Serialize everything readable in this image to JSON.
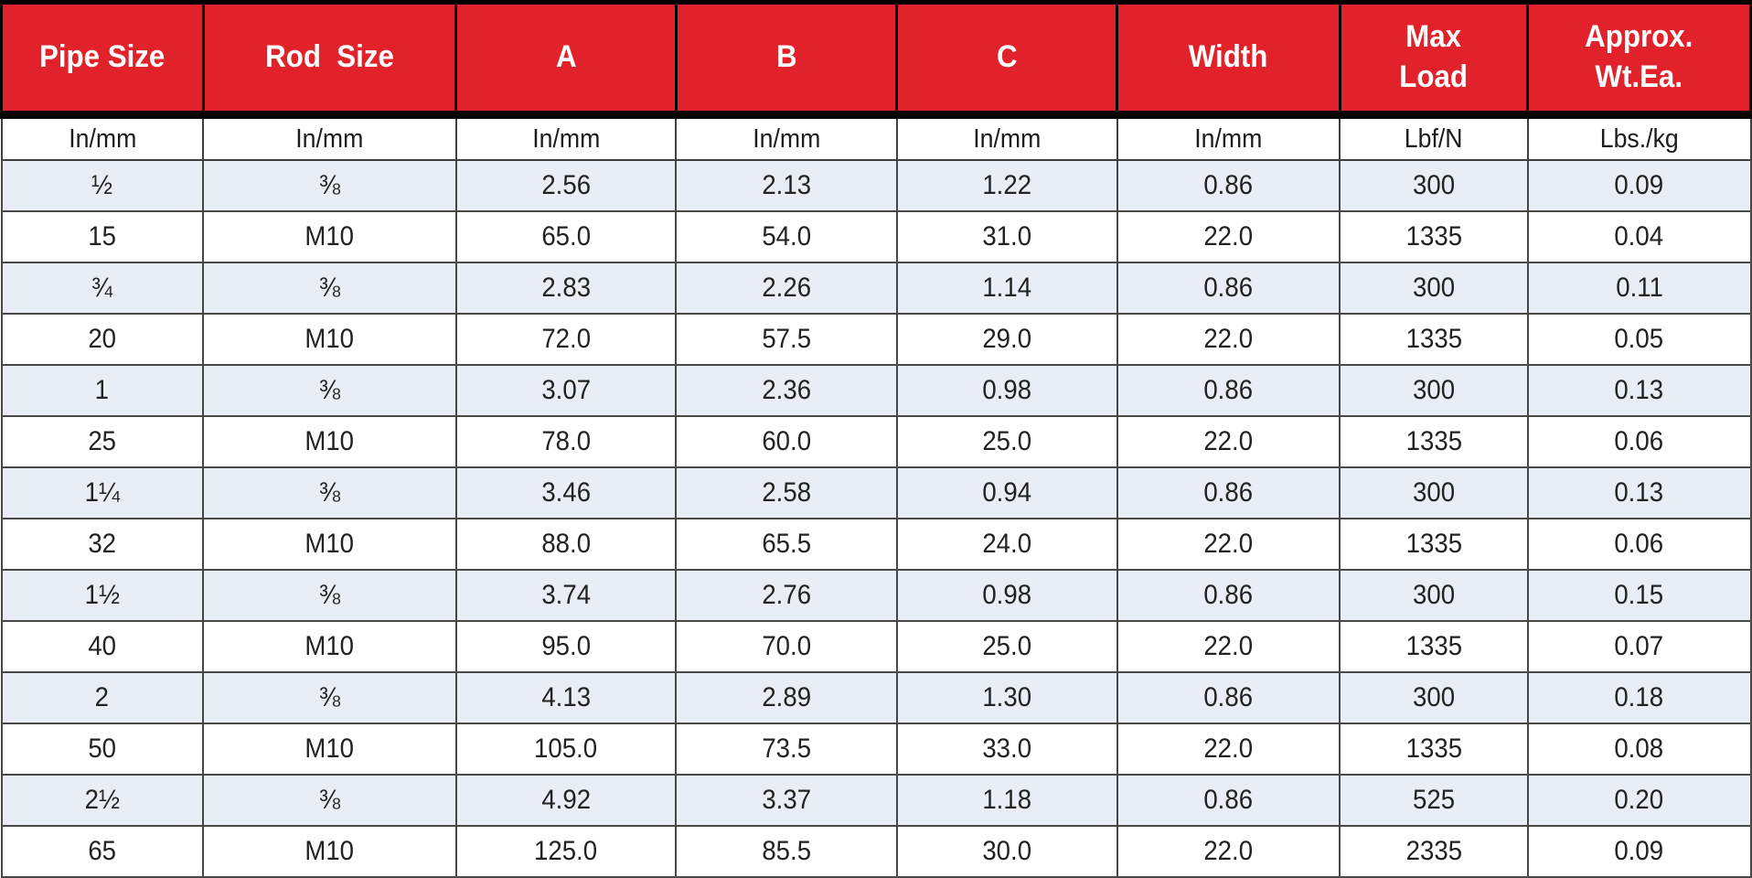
{
  "table": {
    "title": "pipe-hanger-dimension-table",
    "colors": {
      "header_bg": "#e2222a",
      "header_text": "#ffffff",
      "stripe_bg": "#e9edf5",
      "row_bg": "#ffffff",
      "grid_line": "#474747",
      "heavy_line": "#000000",
      "body_text": "#222222"
    },
    "columns": [
      {
        "label": "Pipe Size",
        "unit": "In/mm"
      },
      {
        "label": "Rod  Size",
        "unit": "In/mm"
      },
      {
        "label": "A",
        "unit": "In/mm"
      },
      {
        "label": "B",
        "unit": "In/mm"
      },
      {
        "label": "C",
        "unit": "In/mm"
      },
      {
        "label": "Width",
        "unit": "In/mm"
      },
      {
        "label": "Max\nLoad",
        "unit": "Lbf/N"
      },
      {
        "label": "Approx.\nWt.Ea.",
        "unit": "Lbs./kg"
      }
    ],
    "rows": [
      [
        "½",
        "⅜",
        "2.56",
        "2.13",
        "1.22",
        "0.86",
        "300",
        "0.09"
      ],
      [
        "15",
        "M10",
        "65.0",
        "54.0",
        "31.0",
        "22.0",
        "1335",
        "0.04"
      ],
      [
        "¾",
        "⅜",
        "2.83",
        "2.26",
        "1.14",
        "0.86",
        "300",
        "0.11"
      ],
      [
        "20",
        "M10",
        "72.0",
        "57.5",
        "29.0",
        "22.0",
        "1335",
        "0.05"
      ],
      [
        "1",
        "⅜",
        "3.07",
        "2.36",
        "0.98",
        "0.86",
        "300",
        "0.13"
      ],
      [
        "25",
        "M10",
        "78.0",
        "60.0",
        "25.0",
        "22.0",
        "1335",
        "0.06"
      ],
      [
        "1¼",
        "⅜",
        "3.46",
        "2.58",
        "0.94",
        "0.86",
        "300",
        "0.13"
      ],
      [
        "32",
        "M10",
        "88.0",
        "65.5",
        "24.0",
        "22.0",
        "1335",
        "0.06"
      ],
      [
        "1½",
        "⅜",
        "3.74",
        "2.76",
        "0.98",
        "0.86",
        "300",
        "0.15"
      ],
      [
        "40",
        "M10",
        "95.0",
        "70.0",
        "25.0",
        "22.0",
        "1335",
        "0.07"
      ],
      [
        "2",
        "⅜",
        "4.13",
        "2.89",
        "1.30",
        "0.86",
        "300",
        "0.18"
      ],
      [
        "50",
        "M10",
        "105.0",
        "73.5",
        "33.0",
        "22.0",
        "1335",
        "0.08"
      ],
      [
        "2½",
        "⅜",
        "4.92",
        "3.37",
        "1.18",
        "0.86",
        "525",
        "0.20"
      ],
      [
        "65",
        "M10",
        "125.0",
        "85.5",
        "30.0",
        "22.0",
        "2335",
        "0.09"
      ]
    ]
  }
}
